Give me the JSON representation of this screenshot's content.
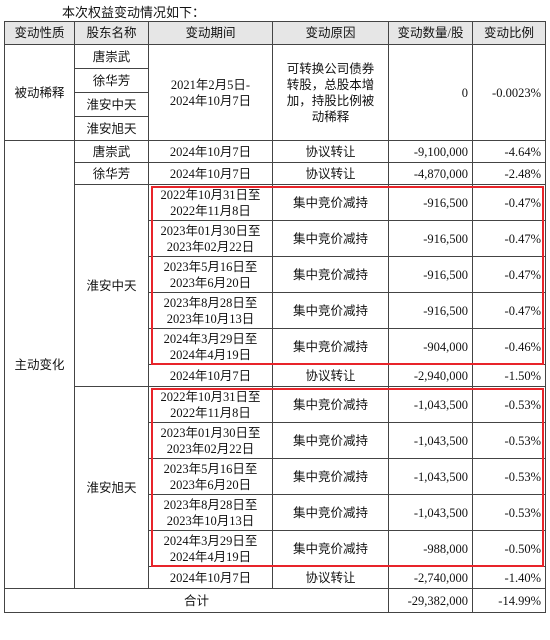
{
  "intro": "本次权益变动情况如下：",
  "table": {
    "header": [
      "变动性质",
      "股东名称",
      "变动期间",
      "变动原因",
      "变动数量/股",
      "变动比例"
    ],
    "passive": {
      "nature": "被动稀释",
      "holders": [
        "唐崇武",
        "徐华芳",
        "淮安中天",
        "淮安旭天"
      ],
      "period": "2021年2月5日-\n2024年10月7日",
      "reason": "可转换公司债券\n转股，总股本增\n加，持股比例被\n动稀释",
      "quantity": "0",
      "ratio": "-0.0023%"
    },
    "active": {
      "nature": "主动变化",
      "groups": [
        {
          "holder": "唐崇武",
          "items": [
            {
              "period": "2024年10月7日",
              "reason": "协议转让",
              "quantity": "-9,100,000",
              "ratio": "-4.64%"
            }
          ]
        },
        {
          "holder": "徐华芳",
          "items": [
            {
              "period": "2024年10月7日",
              "reason": "协议转让",
              "quantity": "-4,870,000",
              "ratio": "-2.48%"
            }
          ]
        },
        {
          "holder": "淮安中天",
          "items": [
            {
              "period": "2022年10月31日至\n2022年11月8日",
              "reason": "集中竞价减持",
              "quantity": "-916,500",
              "ratio": "-0.47%",
              "highlight": true
            },
            {
              "period": "2023年01月30日至\n2023年02月22日",
              "reason": "集中竞价减持",
              "quantity": "-916,500",
              "ratio": "-0.47%",
              "highlight": true
            },
            {
              "period": "2023年5月16日至\n2023年6月20日",
              "reason": "集中竞价减持",
              "quantity": "-916,500",
              "ratio": "-0.47%",
              "highlight": true
            },
            {
              "period": "2023年8月28日至\n2023年10月13日",
              "reason": "集中竞价减持",
              "quantity": "-916,500",
              "ratio": "-0.47%",
              "highlight": true
            },
            {
              "period": "2024年3月29日至\n2024年4月19日",
              "reason": "集中竞价减持",
              "quantity": "-904,000",
              "ratio": "-0.46%",
              "highlight": true
            },
            {
              "period": "2024年10月7日",
              "reason": "协议转让",
              "quantity": "-2,940,000",
              "ratio": "-1.50%"
            }
          ]
        },
        {
          "holder": "淮安旭天",
          "items": [
            {
              "period": "2022年10月31日至\n2022年11月8日",
              "reason": "集中竞价减持",
              "quantity": "-1,043,500",
              "ratio": "-0.53%",
              "highlight": true
            },
            {
              "period": "2023年01月30日至\n2023年02月22日",
              "reason": "集中竞价减持",
              "quantity": "-1,043,500",
              "ratio": "-0.53%",
              "highlight": true
            },
            {
              "period": "2023年5月16日至\n2023年6月20日",
              "reason": "集中竞价减持",
              "quantity": "-1,043,500",
              "ratio": "-0.53%",
              "highlight": true
            },
            {
              "period": "2023年8月28日至\n2023年10月13日",
              "reason": "集中竞价减持",
              "quantity": "-1,043,500",
              "ratio": "-0.53%",
              "highlight": true
            },
            {
              "period": "2024年3月29日至\n2024年4月19日",
              "reason": "集中竞价减持",
              "quantity": "-988,000",
              "ratio": "-0.50%",
              "highlight": true
            },
            {
              "period": "2024年10月7日",
              "reason": "协议转让",
              "quantity": "-2,740,000",
              "ratio": "-1.40%"
            }
          ]
        }
      ]
    },
    "total": {
      "label": "合计",
      "quantity": "-29,382,000",
      "ratio": "-14.99%"
    }
  }
}
